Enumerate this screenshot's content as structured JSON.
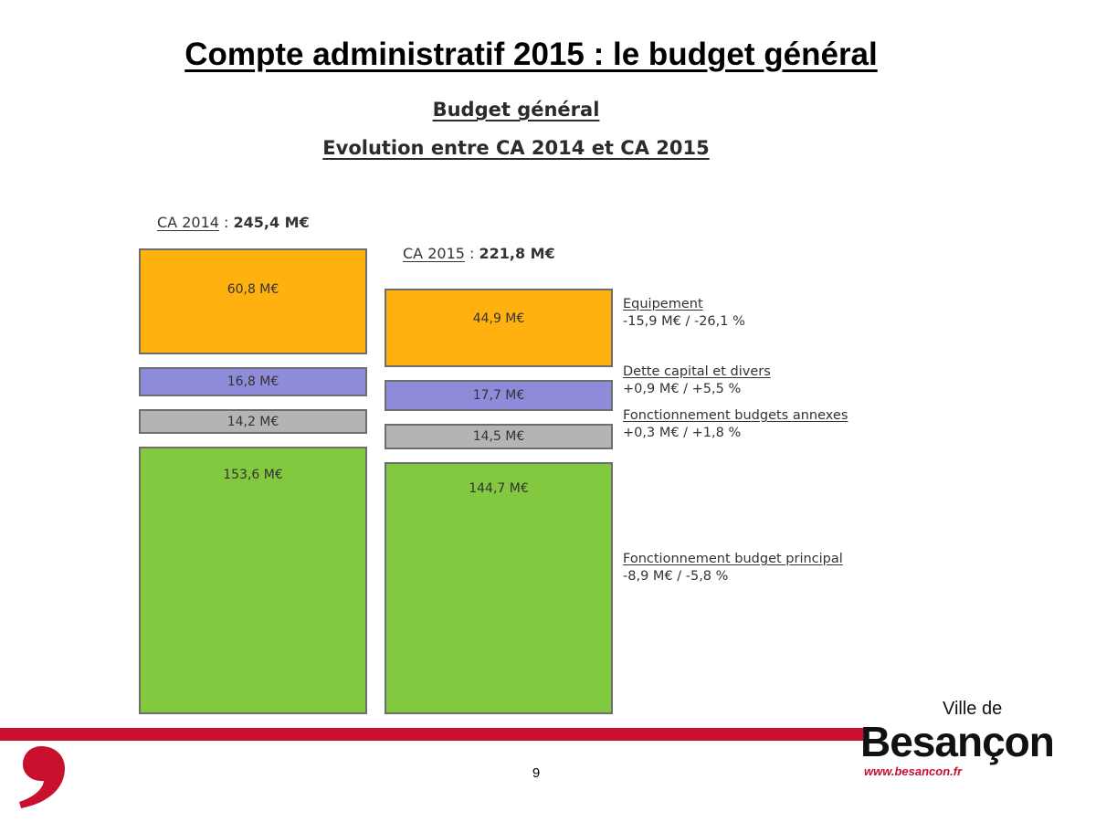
{
  "slide": {
    "title": "Compte administratif 2015 : le budget général",
    "page_number": "9"
  },
  "logo": {
    "ville": "Ville de",
    "name": "Besançon",
    "url": "www.besancon.fr"
  },
  "chart_data": {
    "type": "bar",
    "title": "Budget général",
    "subtitle": "Evolution entre CA 2014 et CA 2015",
    "unit": "M€",
    "columns": [
      {
        "label": "CA 2014",
        "total": "245,4 M€"
      },
      {
        "label": "CA 2015",
        "total": "221,8 M€"
      }
    ],
    "series": [
      {
        "name": "Equipement",
        "change": "-15,9 M€ / -26,1 %",
        "color": "#FFB10F",
        "values": [
          60.8,
          44.9
        ],
        "labels": [
          "60,8 M€",
          "44,9 M€"
        ]
      },
      {
        "name": "Dette capital et divers",
        "change": "+0,9 M€ / +5,5 %",
        "color": "#8F8BDB",
        "values": [
          16.8,
          17.7
        ],
        "labels": [
          "16,8 M€",
          "17,7 M€"
        ]
      },
      {
        "name": "Fonctionnement budgets annexes",
        "change": "+0,3 M€ / +1,8 %",
        "color": "#B4B4B4",
        "values": [
          14.2,
          14.5
        ],
        "labels": [
          "14,2 M€",
          "14,5 M€"
        ]
      },
      {
        "name": "Fonctionnement budget principal",
        "change": "-8,9 M€ / -5,8 %",
        "color": "#82C940",
        "values": [
          153.6,
          144.7
        ],
        "labels": [
          "153,6 M€",
          "144,7 M€"
        ]
      }
    ]
  }
}
